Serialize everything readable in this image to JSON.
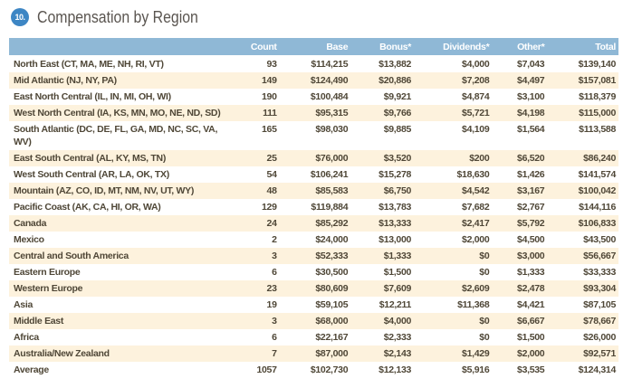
{
  "header": {
    "number": "10.",
    "title": "Compensation by Region"
  },
  "colors": {
    "header_bg": "#8fb8d6",
    "alt_row": "#fdf2dd",
    "badge": "#3d86c4"
  },
  "columns": [
    "",
    "Count",
    "Base",
    "Bonus*",
    "Dividends*",
    "Other*",
    "Total"
  ],
  "rows": [
    [
      "North East (CT, MA, ME, NH, RI, VT)",
      "93",
      "$114,215",
      "$13,882",
      "$4,000",
      "$7,043",
      "$139,140"
    ],
    [
      "Mid Atlantic (NJ, NY, PA)",
      "149",
      "$124,490",
      "$20,886",
      "$7,208",
      "$4,497",
      "$157,081"
    ],
    [
      "East North Central (IL, IN, MI, OH, WI)",
      "190",
      "$100,484",
      "$9,921",
      "$4,874",
      "$3,100",
      "$118,379"
    ],
    [
      "West North Central (IA, KS, MN, MO, NE, ND, SD)",
      "111",
      "$95,315",
      "$9,766",
      "$5,721",
      "$4,198",
      "$115,000"
    ],
    [
      "South Atlantic (DC, DE, FL, GA, MD, NC, SC, VA, WV)",
      "165",
      "$98,030",
      "$9,885",
      "$4,109",
      "$1,564",
      "$113,588"
    ],
    [
      "East South Central (AL, KY, MS, TN)",
      "25",
      "$76,000",
      "$3,520",
      "$200",
      "$6,520",
      "$86,240"
    ],
    [
      "West South Central (AR, LA, OK, TX)",
      "54",
      "$106,241",
      "$15,278",
      "$18,630",
      "$1,426",
      "$141,574"
    ],
    [
      "Mountain (AZ, CO, ID, MT, NM, NV, UT, WY)",
      "48",
      "$85,583",
      "$6,750",
      "$4,542",
      "$3,167",
      "$100,042"
    ],
    [
      "Pacific Coast (AK, CA, HI, OR, WA)",
      "129",
      "$119,884",
      "$13,783",
      "$7,682",
      "$2,767",
      "$144,116"
    ],
    [
      "Canada",
      "24",
      "$85,292",
      "$13,333",
      "$2,417",
      "$5,792",
      "$106,833"
    ],
    [
      "Mexico",
      "2",
      "$24,000",
      "$13,000",
      "$2,000",
      "$4,500",
      "$43,500"
    ],
    [
      "Central and South America",
      "3",
      "$52,333",
      "$1,333",
      "$0",
      "$3,000",
      "$56,667"
    ],
    [
      "Eastern Europe",
      "6",
      "$30,500",
      "$1,500",
      "$0",
      "$1,333",
      "$33,333"
    ],
    [
      "Western Europe",
      "23",
      "$80,609",
      "$7,609",
      "$2,609",
      "$2,478",
      "$93,304"
    ],
    [
      "Asia",
      "19",
      "$59,105",
      "$12,211",
      "$11,368",
      "$4,421",
      "$87,105"
    ],
    [
      "Middle East",
      "3",
      "$68,000",
      "$4,000",
      "$0",
      "$6,667",
      "$78,667"
    ],
    [
      "Africa",
      "6",
      "$22,167",
      "$2,333",
      "$0",
      "$1,500",
      "$26,000"
    ],
    [
      "Australia/New Zealand",
      "7",
      "$87,000",
      "$2,143",
      "$1,429",
      "$2,000",
      "$92,571"
    ],
    [
      "Average",
      "1057",
      "$102,730",
      "$12,133",
      "$5,916",
      "$3,535",
      "$124,314"
    ]
  ]
}
